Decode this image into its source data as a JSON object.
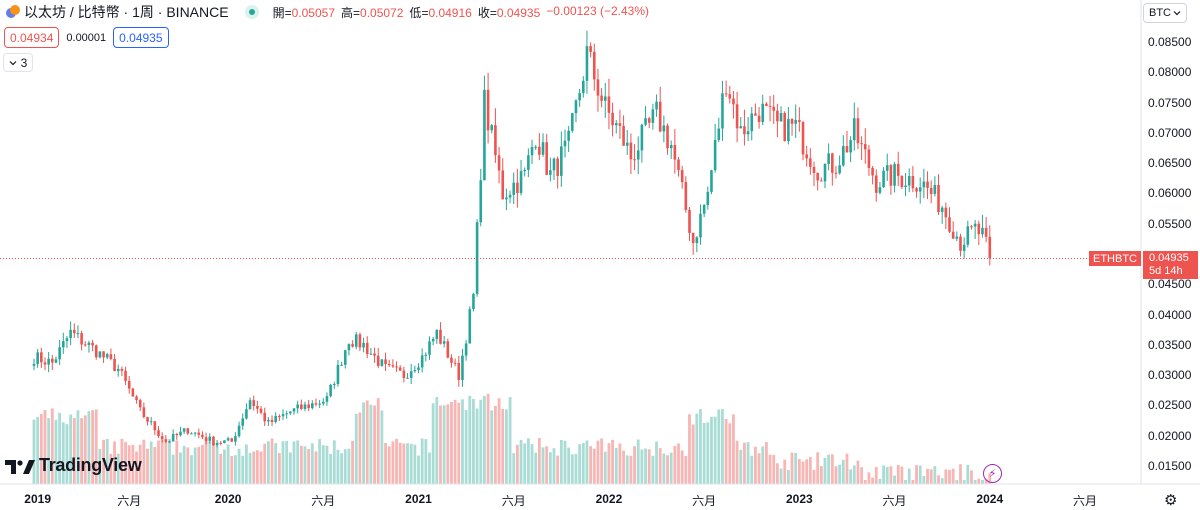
{
  "header": {
    "symbol_title": "以太坊 / 比特幣 · 1周 · BINANCE",
    "ohlc": [
      {
        "label": "開",
        "value": "0.05057"
      },
      {
        "label": "高",
        "value": "0.05072"
      },
      {
        "label": "低",
        "value": "0.04916"
      },
      {
        "label": "收",
        "value": "0.04935"
      }
    ],
    "change": "−0.00123 (−2.43%)"
  },
  "trade": {
    "sell": "0.04934",
    "spread": "0.00001",
    "buy": "0.04935"
  },
  "indicators_count": "3",
  "currency": "BTC",
  "current": {
    "ticker": "ETHBTC",
    "price": "0.04935",
    "countdown": "5d 14h"
  },
  "colors": {
    "up": "#26a69a",
    "down": "#ef5350",
    "vol_up": "#a8dcd5",
    "vol_down": "#f7b6b4"
  },
  "icons": {
    "logo": "tradingview-logo",
    "bolt": "lightning-icon",
    "settings": "gear-icon",
    "chevron": "chevron-down-icon"
  },
  "brand": "TradingView",
  "chart_data": {
    "type": "candlestick",
    "price_axis": {
      "ticks": [
        "0.08500",
        "0.08000",
        "0.07500",
        "0.07000",
        "0.06500",
        "0.06000",
        "0.05500",
        "0.04500",
        "0.04000",
        "0.03500",
        "0.03000",
        "0.02500",
        "0.02000",
        "0.01500"
      ]
    },
    "time_axis": {
      "ticks": [
        {
          "label": "2019",
          "bold": true
        },
        {
          "label": "六月",
          "bold": false
        },
        {
          "label": "2020",
          "bold": true
        },
        {
          "label": "六月",
          "bold": false
        },
        {
          "label": "2021",
          "bold": true
        },
        {
          "label": "六月",
          "bold": false
        },
        {
          "label": "2022",
          "bold": true
        },
        {
          "label": "六月",
          "bold": false
        },
        {
          "label": "2023",
          "bold": true
        },
        {
          "label": "六月",
          "bold": false
        },
        {
          "label": "2024",
          "bold": true
        },
        {
          "label": "六月",
          "bold": false
        }
      ]
    },
    "weekly_close_anchors": [
      [
        "2018-12-31",
        0.033
      ],
      [
        "2019-02-04",
        0.032
      ],
      [
        "2019-03-11",
        0.037
      ],
      [
        "2019-04-29",
        0.034
      ],
      [
        "2019-06-10",
        0.031
      ],
      [
        "2019-07-22",
        0.024
      ],
      [
        "2019-09-09",
        0.019
      ],
      [
        "2019-10-21",
        0.021
      ],
      [
        "2019-12-09",
        0.019
      ],
      [
        "2020-01-13",
        0.019
      ],
      [
        "2020-02-17",
        0.026
      ],
      [
        "2020-03-23",
        0.022
      ],
      [
        "2020-05-04",
        0.024
      ],
      [
        "2020-06-08",
        0.025
      ],
      [
        "2020-07-13",
        0.026
      ],
      [
        "2020-08-24",
        0.036
      ],
      [
        "2020-09-21",
        0.035
      ],
      [
        "2020-11-02",
        0.031
      ],
      [
        "2020-12-07",
        0.03
      ],
      [
        "2021-01-11",
        0.033
      ],
      [
        "2021-02-08",
        0.037
      ],
      [
        "2021-03-22",
        0.03
      ],
      [
        "2021-04-19",
        0.043
      ],
      [
        "2021-05-10",
        0.075
      ],
      [
        "2021-06-14",
        0.06
      ],
      [
        "2021-07-26",
        0.063
      ],
      [
        "2021-08-16",
        0.07
      ],
      [
        "2021-09-13",
        0.063
      ],
      [
        "2021-10-18",
        0.068
      ],
      [
        "2021-11-22",
        0.083
      ],
      [
        "2021-12-27",
        0.074
      ],
      [
        "2022-01-24",
        0.07
      ],
      [
        "2022-02-14",
        0.066
      ],
      [
        "2022-04-04",
        0.073
      ],
      [
        "2022-05-02",
        0.068
      ],
      [
        "2022-06-13",
        0.052
      ],
      [
        "2022-07-11",
        0.06
      ],
      [
        "2022-08-15",
        0.079
      ],
      [
        "2022-09-12",
        0.07
      ],
      [
        "2022-10-17",
        0.074
      ],
      [
        "2022-11-21",
        0.071
      ],
      [
        "2022-12-26",
        0.071
      ],
      [
        "2023-02-06",
        0.064
      ],
      [
        "2023-03-13",
        0.065
      ],
      [
        "2023-04-17",
        0.07
      ],
      [
        "2023-05-29",
        0.062
      ],
      [
        "2023-07-03",
        0.063
      ],
      [
        "2023-08-21",
        0.062
      ],
      [
        "2023-10-02",
        0.058
      ],
      [
        "2023-11-06",
        0.052
      ],
      [
        "2023-12-04",
        0.054
      ],
      [
        "2023-12-18",
        0.053
      ],
      [
        "2024-01-01",
        0.04935
      ]
    ],
    "volume_peaks": [
      [
        "2019-01",
        "high"
      ],
      [
        "2020-09",
        "high"
      ],
      [
        "2021-02",
        "high"
      ],
      [
        "2021-05",
        "high"
      ],
      [
        "2022-06",
        "high"
      ],
      [
        "2023-12",
        "low"
      ]
    ]
  }
}
